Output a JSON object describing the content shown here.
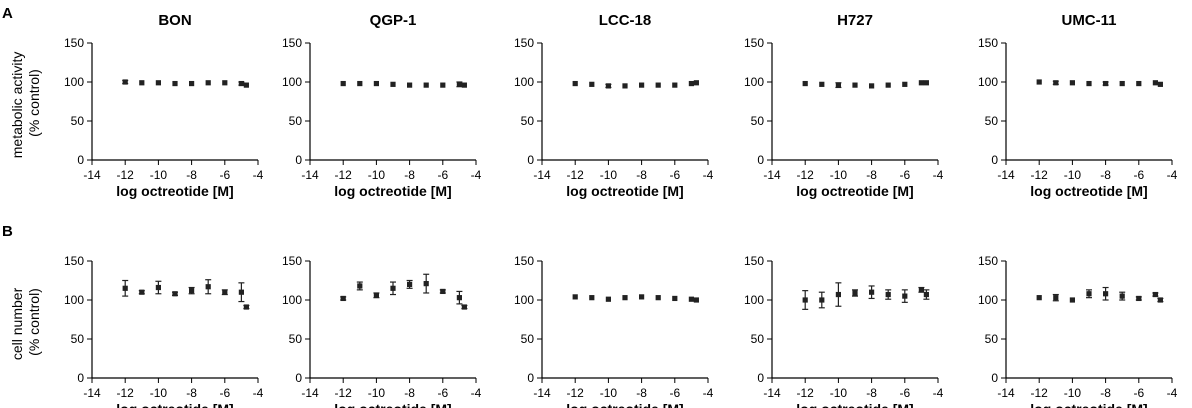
{
  "row_labels": [
    "A",
    "B"
  ],
  "y_axis_titles": [
    [
      "metabolic activity",
      "(% control)"
    ],
    [
      "cell number",
      "(% control)"
    ]
  ],
  "chart_data": [
    {
      "type": "scatter",
      "row": "A",
      "title": "BON",
      "xlabel": "log octreotide [M]",
      "xlim": [
        -14,
        -4
      ],
      "ylim": [
        0,
        150
      ],
      "xticks": [
        -14,
        -12,
        -10,
        -8,
        -6,
        -4
      ],
      "yticks": [
        0,
        50,
        100,
        150
      ],
      "x": [
        -12,
        -11,
        -10,
        -9,
        -8,
        -7,
        -6,
        -5,
        -4.7
      ],
      "y": [
        100,
        99,
        99,
        98,
        98,
        99,
        99,
        98,
        96
      ],
      "err": [
        2,
        1,
        1,
        1,
        1,
        1,
        1,
        2,
        1
      ]
    },
    {
      "type": "scatter",
      "row": "A",
      "title": "QGP-1",
      "xlabel": "log octreotide [M]",
      "xlim": [
        -14,
        -4
      ],
      "ylim": [
        0,
        150
      ],
      "xticks": [
        -14,
        -12,
        -10,
        -8,
        -6,
        -4
      ],
      "yticks": [
        0,
        50,
        100,
        150
      ],
      "x": [
        -12,
        -11,
        -10,
        -9,
        -8,
        -7,
        -6,
        -5,
        -4.7
      ],
      "y": [
        98,
        98,
        98,
        97,
        96,
        96,
        96,
        97,
        96
      ],
      "err": [
        1,
        1,
        1,
        1,
        1,
        1,
        1,
        3,
        1
      ]
    },
    {
      "type": "scatter",
      "row": "A",
      "title": "LCC-18",
      "xlabel": "log octreotide [M]",
      "xlim": [
        -14,
        -4
      ],
      "ylim": [
        0,
        150
      ],
      "xticks": [
        -14,
        -12,
        -10,
        -8,
        -6,
        -4
      ],
      "yticks": [
        0,
        50,
        100,
        150
      ],
      "x": [
        -12,
        -11,
        -10,
        -9,
        -8,
        -7,
        -6,
        -5,
        -4.7
      ],
      "y": [
        98,
        97,
        95,
        95,
        96,
        96,
        96,
        98,
        99
      ],
      "err": [
        1,
        1,
        2,
        1,
        1,
        1,
        1,
        1,
        1
      ]
    },
    {
      "type": "scatter",
      "row": "A",
      "title": "H727",
      "xlabel": "log octreotide [M]",
      "xlim": [
        -14,
        -4
      ],
      "ylim": [
        0,
        150
      ],
      "xticks": [
        -14,
        -12,
        -10,
        -8,
        -6,
        -4
      ],
      "yticks": [
        0,
        50,
        100,
        150
      ],
      "x": [
        -12,
        -11,
        -10,
        -9,
        -8,
        -7,
        -6,
        -5,
        -4.7
      ],
      "y": [
        98,
        97,
        96,
        96,
        95,
        96,
        97,
        99,
        99
      ],
      "err": [
        1,
        1,
        3,
        1,
        1,
        1,
        1,
        1,
        1
      ]
    },
    {
      "type": "scatter",
      "row": "A",
      "title": "UMC-11",
      "xlabel": "log octreotide [M]",
      "xlim": [
        -14,
        -4
      ],
      "ylim": [
        0,
        150
      ],
      "xticks": [
        -14,
        -12,
        -10,
        -8,
        -6,
        -4
      ],
      "yticks": [
        0,
        50,
        100,
        150
      ],
      "x": [
        -12,
        -11,
        -10,
        -9,
        -8,
        -7,
        -6,
        -5,
        -4.7
      ],
      "y": [
        100,
        99,
        99,
        98,
        98,
        98,
        98,
        99,
        97
      ],
      "err": [
        1,
        2,
        1,
        1,
        2,
        1,
        1,
        1,
        1
      ]
    },
    {
      "type": "scatter",
      "row": "B",
      "title": "",
      "xlabel": "log octreotide [M]",
      "xlim": [
        -14,
        -4
      ],
      "ylim": [
        0,
        150
      ],
      "xticks": [
        -14,
        -12,
        -10,
        -8,
        -6,
        -4
      ],
      "yticks": [
        0,
        50,
        100,
        150
      ],
      "x": [
        -12,
        -11,
        -10,
        -9,
        -8,
        -7,
        -6,
        -5,
        -4.7
      ],
      "y": [
        115,
        110,
        116,
        108,
        112,
        117,
        110,
        110,
        91
      ],
      "err": [
        10,
        2,
        8,
        2,
        4,
        9,
        3,
        12,
        2
      ]
    },
    {
      "type": "scatter",
      "row": "B",
      "title": "",
      "xlabel": "log octreotide [M]",
      "xlim": [
        -14,
        -4
      ],
      "ylim": [
        0,
        150
      ],
      "xticks": [
        -14,
        -12,
        -10,
        -8,
        -6,
        -4
      ],
      "yticks": [
        0,
        50,
        100,
        150
      ],
      "x": [
        -12,
        -11,
        -10,
        -9,
        -8,
        -7,
        -6,
        -5,
        -4.7
      ],
      "y": [
        102,
        118,
        106,
        115,
        120,
        121,
        111,
        103,
        91
      ],
      "err": [
        2,
        5,
        3,
        8,
        5,
        12,
        2,
        8,
        2
      ]
    },
    {
      "type": "scatter",
      "row": "B",
      "title": "",
      "xlabel": "log octreotide [M]",
      "xlim": [
        -14,
        -4
      ],
      "ylim": [
        0,
        150
      ],
      "xticks": [
        -14,
        -12,
        -10,
        -8,
        -6,
        -4
      ],
      "yticks": [
        0,
        50,
        100,
        150
      ],
      "x": [
        -12,
        -11,
        -10,
        -9,
        -8,
        -7,
        -6,
        -5,
        -4.7
      ],
      "y": [
        104,
        103,
        101,
        103,
        104,
        103,
        102,
        101,
        100
      ],
      "err": [
        1,
        1,
        1,
        1,
        1,
        1,
        1,
        1,
        1
      ]
    },
    {
      "type": "scatter",
      "row": "B",
      "title": "",
      "xlabel": "log octreotide [M]",
      "xlim": [
        -14,
        -4
      ],
      "ylim": [
        0,
        150
      ],
      "xticks": [
        -14,
        -12,
        -10,
        -8,
        -6,
        -4
      ],
      "yticks": [
        0,
        50,
        100,
        150
      ],
      "x": [
        -12,
        -11,
        -10,
        -9,
        -8,
        -7,
        -6,
        -5,
        -4.7
      ],
      "y": [
        100,
        100,
        107,
        109,
        110,
        107,
        105,
        113,
        107
      ],
      "err": [
        12,
        10,
        15,
        4,
        8,
        6,
        8,
        3,
        6
      ]
    },
    {
      "type": "scatter",
      "row": "B",
      "title": "",
      "xlabel": "log octreotide [M]",
      "xlim": [
        -14,
        -4
      ],
      "ylim": [
        0,
        150
      ],
      "xticks": [
        -14,
        -12,
        -10,
        -8,
        -6,
        -4
      ],
      "yticks": [
        0,
        50,
        100,
        150
      ],
      "x": [
        -12,
        -11,
        -10,
        -9,
        -8,
        -7,
        -6,
        -5,
        -4.7
      ],
      "y": [
        103,
        103,
        100,
        108,
        108,
        105,
        102,
        107,
        100
      ],
      "err": [
        1,
        4,
        1,
        5,
        8,
        5,
        2,
        2,
        2
      ]
    }
  ]
}
